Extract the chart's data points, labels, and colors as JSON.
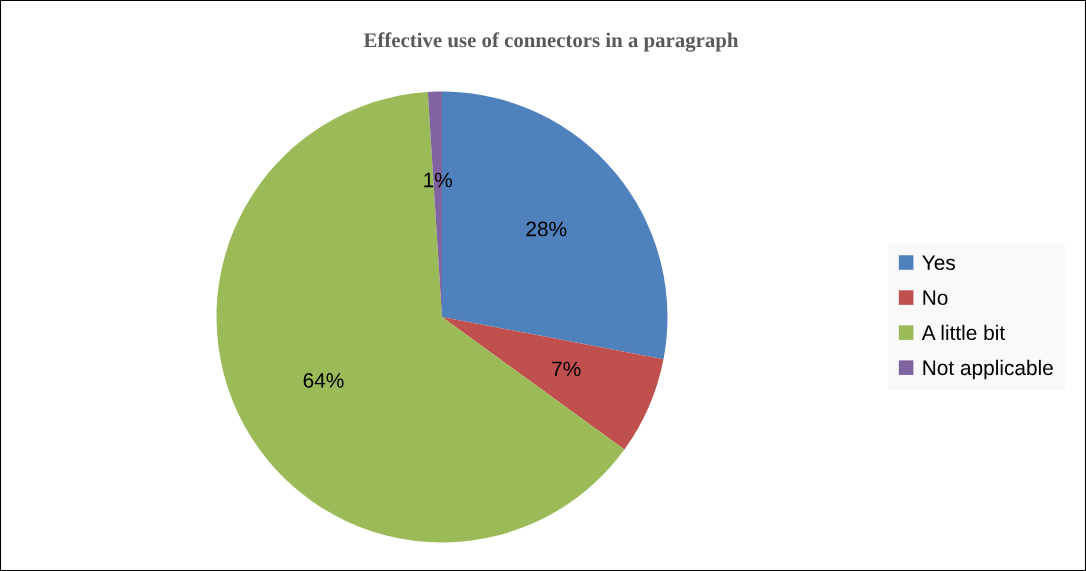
{
  "chart_data": {
    "type": "pie",
    "title": "Effective use of connectors in a paragraph",
    "categories": [
      "Yes",
      "No",
      "A little bit",
      "Not applicable"
    ],
    "values": [
      28,
      7,
      64,
      1
    ],
    "colors": [
      "#4f81bd",
      "#c0504d",
      "#9bbb59",
      "#8064a2"
    ],
    "value_labels": [
      "28%",
      "7%",
      "64%",
      "1%"
    ],
    "legend": "right"
  }
}
